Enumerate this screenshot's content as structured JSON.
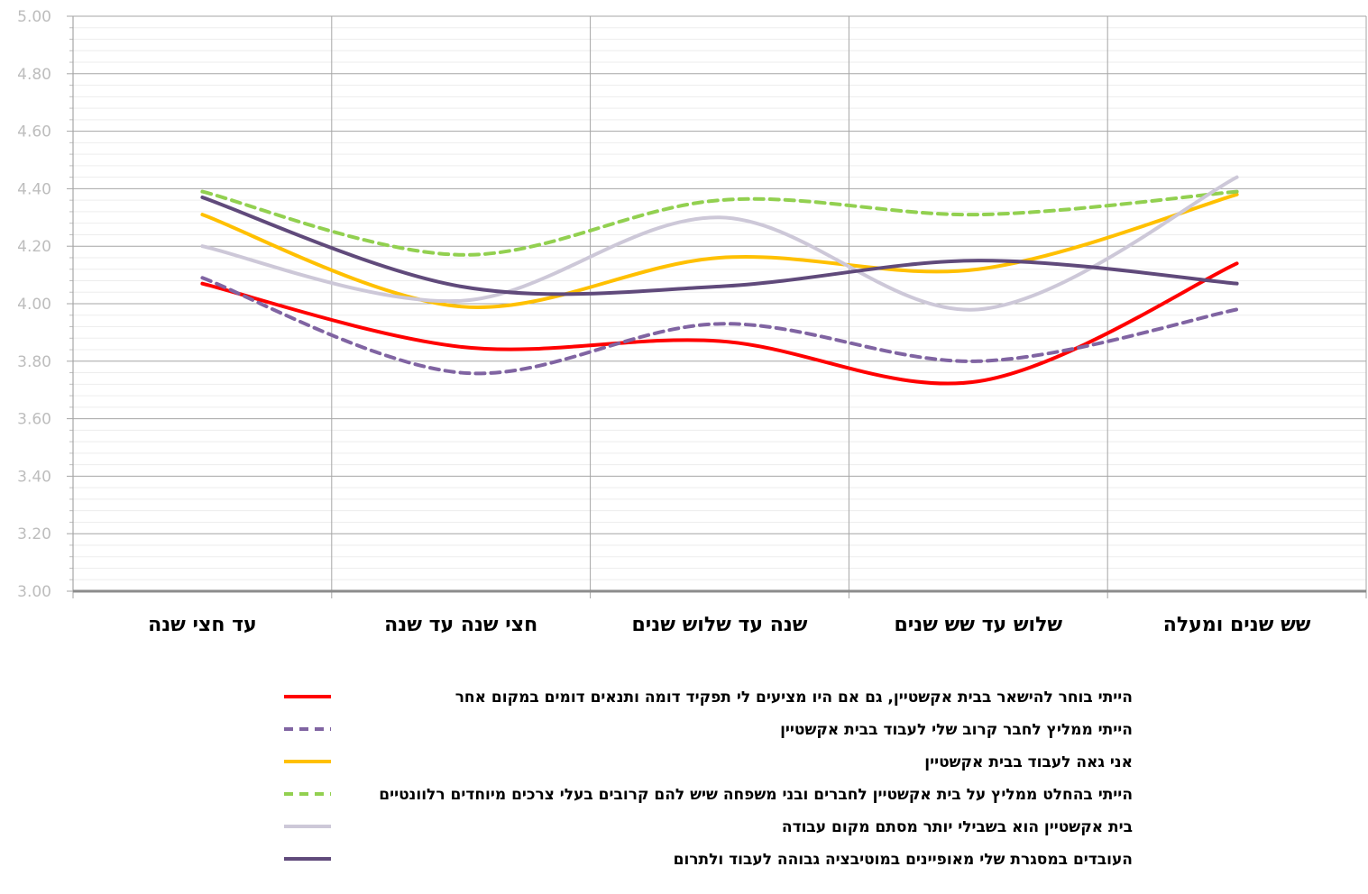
{
  "chart_data": {
    "type": "line",
    "categories": [
      "עד חצי שנה",
      "חצי שנה עד שנה",
      "שנה עד שלוש שנים",
      "שלוש עד שש שנים",
      "שש שנים ומעלה"
    ],
    "ylim": [
      3.0,
      5.0
    ],
    "yticks": [
      "5.00",
      "4.80",
      "4.60",
      "4.40",
      "4.20",
      "4.00",
      "3.80",
      "3.60",
      "3.40",
      "3.20",
      "3.00"
    ],
    "ytick_values": [
      5.0,
      4.8,
      4.6,
      4.4,
      4.2,
      4.0,
      3.8,
      3.6,
      3.4,
      3.2,
      3.0
    ],
    "grid": true,
    "smooth": true,
    "legend_position": "bottom",
    "series": [
      {
        "name": "הייתי בוחר להישאר בבית אקשטיין, גם אם היו מציעים לי תפקיד דומה ותנאים דומים במקום אחר",
        "values": [
          4.07,
          3.85,
          3.87,
          3.73,
          4.14
        ],
        "color": "#ff0000",
        "dash": "solid"
      },
      {
        "name": "הייתי ממליץ לחבר קרוב שלי לעבוד בבית אקשטיין",
        "values": [
          4.09,
          3.76,
          3.93,
          3.8,
          3.98
        ],
        "color": "#8064a2",
        "dash": "dashed"
      },
      {
        "name": "אני גאה לעבוד בבית אקשטיין",
        "values": [
          4.31,
          3.99,
          4.16,
          4.12,
          4.38
        ],
        "color": "#ffc000",
        "dash": "solid"
      },
      {
        "name": "הייתי בהחלט ממליץ על בית אקשטיין לחברים ובני משפחה שיש להם קרובים בעלי צרכים מיוחדים רלוונטיים",
        "values": [
          4.39,
          4.17,
          4.36,
          4.31,
          4.39
        ],
        "color": "#92d050",
        "dash": "dashed"
      },
      {
        "name": "בית אקשטיין הוא בשבילי יותר מסתם מקום עבודה",
        "values": [
          4.2,
          4.01,
          4.3,
          3.98,
          4.44
        ],
        "color": "#cdc8d8",
        "dash": "solid"
      },
      {
        "name": "העובדים במסגרת שלי מאופיינים במוטיבציה גבוהה לעבוד ולתרום",
        "values": [
          4.37,
          4.06,
          4.06,
          4.15,
          4.07
        ],
        "color": "#604a7b",
        "dash": "solid"
      }
    ]
  }
}
